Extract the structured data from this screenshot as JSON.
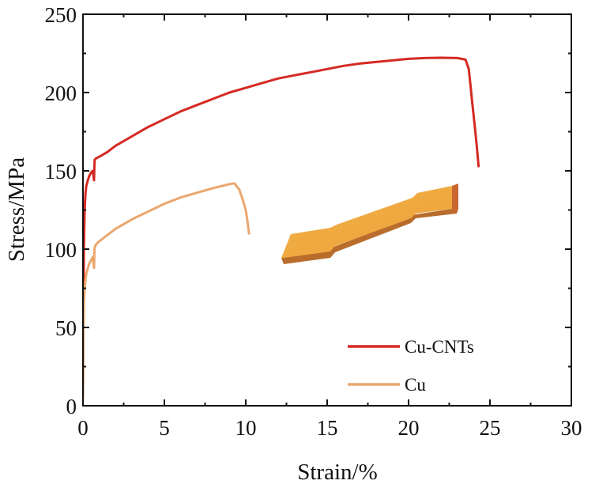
{
  "chart_data": {
    "type": "line",
    "title": "",
    "xlabel": "Strain/%",
    "ylabel": "Stress/MPa",
    "xlim": [
      0,
      30
    ],
    "ylim": [
      0,
      250
    ],
    "xticks": [
      0,
      5,
      10,
      15,
      20,
      25,
      30
    ],
    "yticks": [
      0,
      50,
      100,
      150,
      200,
      250
    ],
    "grid": false,
    "legend_position": "bottom-right",
    "inset_image": "dog-bone tensile specimen",
    "series": [
      {
        "name": "Cu-CNTs",
        "color": "#d42a23",
        "x": [
          0,
          0.03,
          0.06,
          0.1,
          0.15,
          0.2,
          0.3,
          0.4,
          0.5,
          0.6,
          0.68,
          0.7,
          0.72,
          0.8,
          1.0,
          1.5,
          2,
          3,
          4,
          5,
          6,
          7,
          8,
          9,
          10,
          11,
          12,
          13,
          14,
          15,
          16,
          17,
          18,
          19,
          20,
          21,
          22,
          23,
          23.5,
          23.7,
          23.8,
          23.9,
          24.0,
          24.1,
          24.2,
          24.3
        ],
        "y": [
          8,
          60,
          100,
          125,
          135,
          140,
          144,
          147,
          149,
          150,
          144,
          152,
          157,
          158,
          159,
          162,
          166,
          172,
          178,
          183,
          188,
          192,
          196,
          200,
          203,
          206,
          209,
          211,
          213,
          215,
          217,
          218.5,
          219.5,
          220.5,
          221.5,
          222,
          222.2,
          222,
          221,
          215,
          205,
          195,
          185,
          175,
          165,
          153
        ]
      },
      {
        "name": "Cu",
        "color": "#eaa76e",
        "x": [
          0,
          0.03,
          0.06,
          0.1,
          0.15,
          0.2,
          0.3,
          0.4,
          0.5,
          0.6,
          0.68,
          0.7,
          0.72,
          0.8,
          1.0,
          1.5,
          2,
          3,
          4,
          5,
          6,
          7,
          8,
          9,
          9.3,
          9.6,
          9.8,
          10.0,
          10.1,
          10.2
        ],
        "y": [
          5,
          45,
          65,
          75,
          80,
          84,
          88,
          91,
          93,
          95,
          88,
          98,
          101,
          103,
          105,
          109,
          113,
          119,
          124,
          129,
          133,
          136,
          139,
          141.5,
          142,
          138,
          132,
          125,
          118,
          110
        ]
      }
    ]
  }
}
